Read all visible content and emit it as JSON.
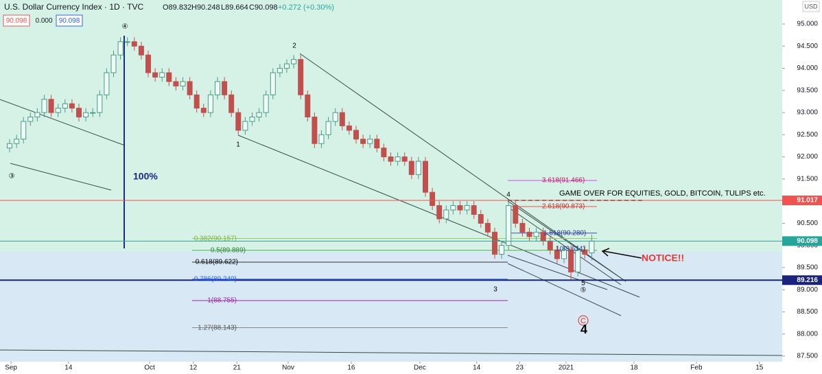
{
  "chart_data": {
    "type": "candlestick",
    "title": "U.S. Dollar Currency Index · 1D · TVC",
    "ohlc_legend": [
      "O89.832",
      "H90.248",
      "L89.664",
      "C90.098",
      "+0.272 (+0.30%)"
    ],
    "header_boxes": [
      "90.098",
      "0.000",
      "90.098"
    ],
    "currency": "USD",
    "up_color": "#4a9a8a",
    "down_color": "#c0504d",
    "open": [
      92.2,
      92.3,
      92.4,
      92.8,
      92.9,
      93.0,
      93.3,
      93.0,
      93.1,
      93.2,
      93.1,
      92.9,
      93.0,
      93.0,
      93.4,
      93.9,
      94.3,
      94.6,
      94.6,
      94.5,
      94.3,
      93.9,
      93.8,
      93.9,
      93.7,
      93.6,
      93.7,
      93.4,
      93.1,
      93.0,
      93.4,
      93.7,
      93.4,
      93.0,
      92.6,
      92.8,
      92.9,
      93.0,
      93.4,
      93.9,
      94.0,
      94.1,
      94.2,
      93.4,
      92.9,
      92.3,
      92.5,
      92.8,
      93.0,
      92.7,
      92.6,
      92.4,
      92.3,
      92.4,
      92.2,
      92.0,
      91.9,
      92.0,
      91.9,
      91.6,
      91.9,
      91.2,
      90.9,
      90.6,
      90.8,
      90.9,
      90.8,
      90.9,
      90.7,
      90.5,
      90.3,
      89.8,
      90.0,
      90.9,
      90.5,
      90.3,
      90.2,
      90.3,
      90.1,
      89.9,
      89.7,
      89.9,
      89.4,
      89.9,
      89.832
    ],
    "high": [
      92.4,
      92.5,
      92.9,
      93.0,
      93.1,
      93.4,
      93.4,
      93.2,
      93.3,
      93.3,
      93.2,
      93.1,
      93.1,
      93.5,
      94.0,
      94.4,
      94.7,
      94.7,
      94.7,
      94.6,
      94.4,
      94.0,
      94.0,
      94.0,
      93.8,
      93.8,
      93.8,
      93.5,
      93.2,
      93.5,
      93.8,
      93.8,
      93.5,
      93.1,
      92.9,
      93.0,
      93.1,
      93.5,
      94.0,
      94.1,
      94.2,
      94.3,
      94.3,
      93.5,
      93.0,
      92.6,
      92.9,
      93.1,
      93.1,
      92.8,
      92.7,
      92.5,
      92.5,
      92.5,
      92.3,
      92.1,
      92.1,
      92.1,
      92.0,
      92.0,
      92.0,
      91.3,
      91.0,
      90.9,
      91.0,
      91.0,
      91.0,
      91.0,
      90.8,
      90.6,
      90.4,
      90.1,
      91.0,
      91.0,
      90.6,
      90.4,
      90.4,
      90.4,
      90.2,
      90.0,
      90.0,
      90.0,
      90.0,
      90.0,
      90.248
    ],
    "low": [
      92.1,
      92.2,
      92.3,
      92.7,
      92.8,
      92.9,
      92.9,
      92.9,
      93.0,
      93.0,
      92.8,
      92.8,
      92.9,
      92.9,
      93.3,
      93.8,
      94.2,
      94.5,
      94.4,
      94.2,
      93.8,
      93.7,
      93.7,
      93.6,
      93.5,
      93.5,
      93.3,
      93.0,
      92.9,
      92.9,
      93.3,
      93.3,
      92.9,
      92.5,
      92.5,
      92.7,
      92.8,
      92.9,
      93.3,
      93.8,
      93.9,
      94.0,
      93.3,
      92.8,
      92.2,
      92.2,
      92.4,
      92.7,
      92.6,
      92.5,
      92.3,
      92.2,
      92.2,
      92.1,
      91.9,
      91.8,
      91.8,
      91.8,
      91.5,
      91.5,
      91.1,
      90.8,
      90.5,
      90.5,
      90.7,
      90.7,
      90.7,
      90.6,
      90.4,
      90.2,
      89.7,
      89.7,
      89.9,
      90.4,
      90.2,
      90.1,
      90.1,
      90.0,
      89.8,
      89.6,
      89.6,
      89.2,
      89.3,
      89.7,
      89.664
    ],
    "close": [
      92.3,
      92.4,
      92.8,
      92.9,
      93.0,
      93.3,
      93.0,
      93.1,
      93.2,
      93.1,
      92.9,
      93.0,
      93.0,
      93.4,
      93.9,
      94.3,
      94.6,
      94.6,
      94.5,
      94.3,
      93.9,
      93.8,
      93.9,
      93.7,
      93.6,
      93.7,
      93.4,
      93.1,
      93.0,
      93.4,
      93.7,
      93.4,
      93.0,
      92.6,
      92.8,
      92.9,
      93.0,
      93.4,
      93.9,
      94.0,
      94.1,
      94.2,
      93.4,
      92.9,
      92.3,
      92.5,
      92.8,
      93.0,
      92.7,
      92.6,
      92.4,
      92.3,
      92.4,
      92.2,
      92.0,
      91.9,
      92.0,
      91.9,
      91.6,
      91.9,
      91.2,
      90.9,
      90.6,
      90.8,
      90.9,
      90.8,
      90.9,
      90.7,
      90.5,
      90.3,
      89.8,
      90.0,
      90.9,
      90.5,
      90.3,
      90.2,
      90.3,
      90.1,
      89.9,
      89.7,
      89.9,
      89.4,
      89.9,
      89.8,
      90.098
    ],
    "ylim": [
      87.376,
      95.542
    ],
    "yticks": [
      {
        "value": 87.5,
        "label": "87.500"
      },
      {
        "value": 88,
        "label": "88.000"
      },
      {
        "value": 88.5,
        "label": "88.500"
      },
      {
        "value": 89,
        "label": "89.000"
      },
      {
        "value": 89.5,
        "label": "89.500"
      },
      {
        "value": 90,
        "label": "90.000"
      },
      {
        "value": 90.5,
        "label": "90.500"
      },
      {
        "value": 91,
        "label": "91.000"
      },
      {
        "value": 91.5,
        "label": "91.500"
      },
      {
        "value": 92,
        "label": "92.000"
      },
      {
        "value": 92.5,
        "label": "92.500"
      },
      {
        "value": 93,
        "label": "93.000"
      },
      {
        "value": 93.5,
        "label": "93.500"
      },
      {
        "value": 94,
        "label": "94.000"
      },
      {
        "value": 94.5,
        "label": "94.500"
      },
      {
        "value": 95,
        "label": "95.000"
      }
    ],
    "xticks": [
      {
        "value": 0.2,
        "label": "Sep"
      },
      {
        "value": 8.5,
        "label": "14"
      },
      {
        "value": 20.2,
        "label": "Oct"
      },
      {
        "value": 26.5,
        "label": "12"
      },
      {
        "value": 32.8,
        "label": "21"
      },
      {
        "value": 40.2,
        "label": "Nov"
      },
      {
        "value": 49.3,
        "label": "16"
      },
      {
        "value": 59.2,
        "label": "Dec"
      },
      {
        "value": 67.4,
        "label": "14"
      },
      {
        "value": 73.6,
        "label": "23"
      },
      {
        "value": 80.3,
        "label": "2021"
      },
      {
        "value": 90.1,
        "label": "18"
      },
      {
        "value": 99.1,
        "label": "Feb"
      },
      {
        "value": 108.2,
        "label": "15"
      }
    ],
    "price_tags": [
      {
        "value": 91.017,
        "label": "91.017",
        "color": "#ef5350"
      },
      {
        "value": 90.098,
        "label": "90.098",
        "color": "#26a69a"
      },
      {
        "value": 89.216,
        "label": "89.216",
        "color": "#1a237e"
      }
    ],
    "annotations": [
      "④",
      "③",
      "100%",
      "2",
      "1",
      "3",
      "4",
      "5",
      "⑤",
      "C",
      "4",
      "GAME OVER FOR EQUITIES, GOLD, BITCOIN, TULIPS etc.",
      "NOTICE!!"
    ],
    "fib_labels": [
      "0.382(90.157)",
      "0.5(89.889)",
      "0.618(89.622)",
      "0.786(89.240)",
      "1(88.755)",
      "1.27(88.143)",
      "3.618(91.466)",
      "2.618(90.873)",
      "1.618(90.280)",
      "1(89.614)"
    ]
  }
}
